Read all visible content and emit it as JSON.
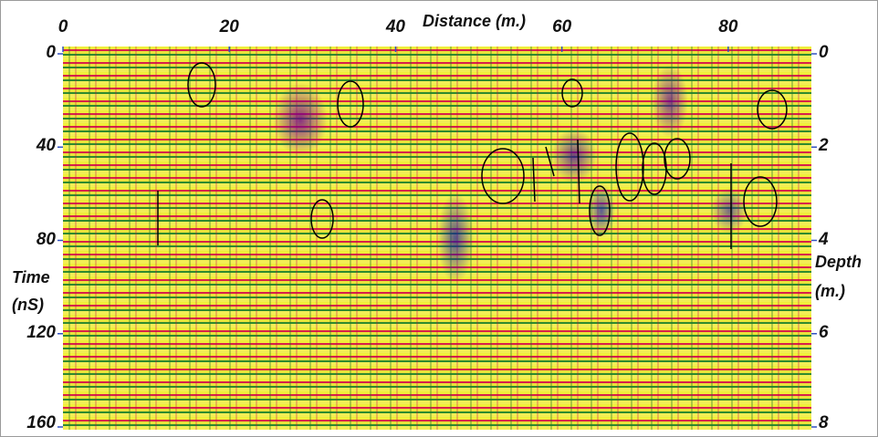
{
  "chart_data": {
    "type": "radargram",
    "x_label": "Distance (m.)",
    "y_label": "Time (nS)",
    "y2_label": "Depth (m.)",
    "xlim": [
      0,
      90
    ],
    "xticks": [
      0,
      20,
      40,
      60,
      80
    ],
    "ylim": [
      0,
      160
    ],
    "yticks": [
      0,
      40,
      80,
      120,
      160
    ],
    "y2lim": [
      0,
      8
    ],
    "y2ticks": [
      0,
      2,
      4,
      6,
      8
    ]
  }
}
